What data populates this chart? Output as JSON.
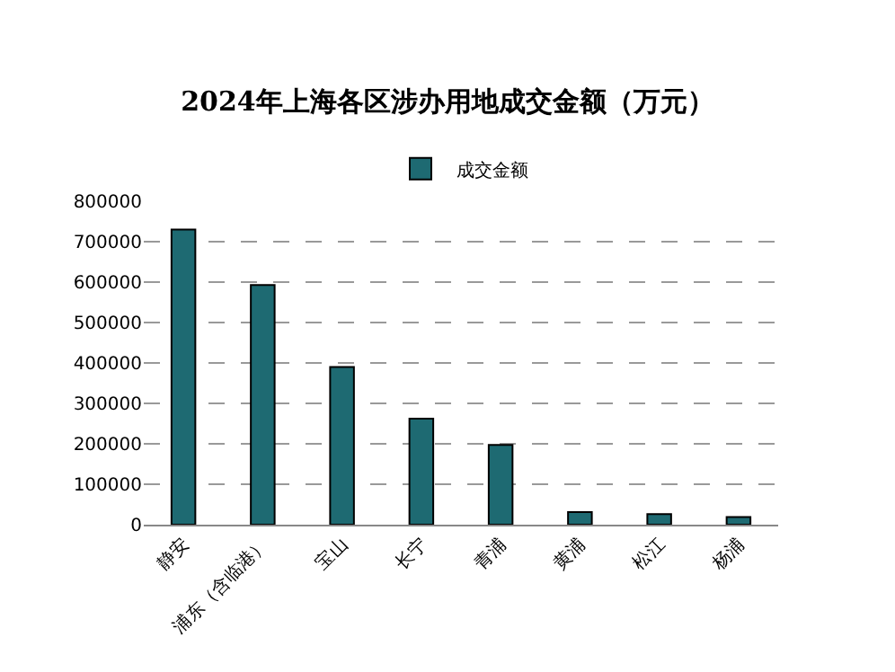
{
  "chart_data": {
    "type": "bar",
    "title": "2024年上海各区涉办用地成交金额（万元）",
    "categories": [
      "静安",
      "浦东（含临港）",
      "宝山",
      "长宁",
      "青浦",
      "黄浦",
      "松江",
      "杨浦"
    ],
    "series": [
      {
        "name": "成交金额",
        "color": "#1e6a72",
        "values": [
          730000,
          593000,
          390000,
          262000,
          197000,
          31000,
          26000,
          19000
        ]
      }
    ],
    "ylim": [
      0,
      800000
    ],
    "yticks": [
      0,
      100000,
      200000,
      300000,
      400000,
      500000,
      600000,
      700000,
      800000
    ],
    "grid": "y",
    "legend": "top"
  }
}
